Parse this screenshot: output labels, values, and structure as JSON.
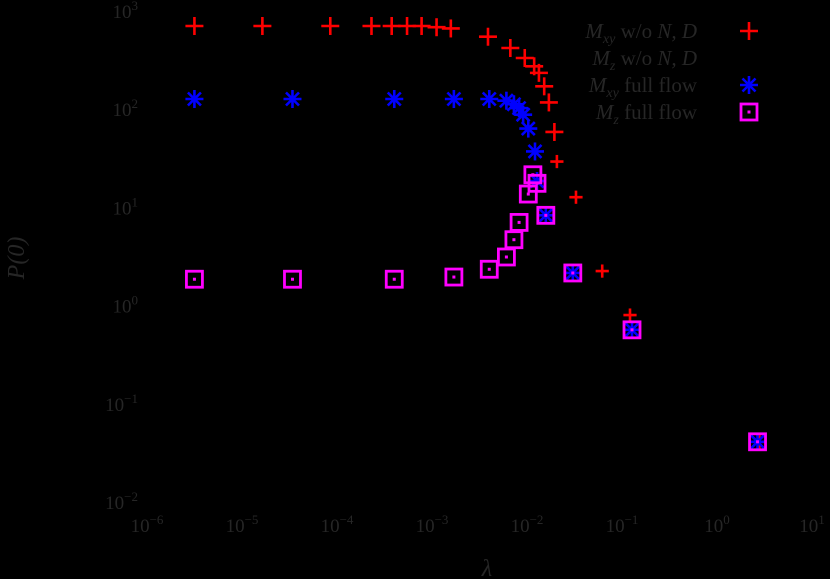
{
  "chart_data": {
    "type": "scatter",
    "title": "",
    "xlabel": "λ",
    "ylabel": "P(0)",
    "xscale": "log",
    "yscale": "log",
    "xlim": [
      1e-06,
      10
    ],
    "ylim": [
      0.01,
      1000
    ],
    "grid": false,
    "legend_position": "upper right",
    "x_ticks": [
      "10^-6",
      "10^-5",
      "10^-4",
      "10^-3",
      "10^-2",
      "10^-1",
      "10^0",
      "10^1"
    ],
    "y_ticks": [
      "10^-2",
      "10^-1",
      "10^0",
      "10^1",
      "10^2",
      "10^3"
    ],
    "series": [
      {
        "name": "M_xy w/o N, D",
        "marker": "plus",
        "color": "#FF0000",
        "x": [
          2.6e-06,
          1.35e-05,
          7e-05,
          0.00019,
          0.00031,
          0.00045,
          0.00064,
          0.00092,
          0.0013,
          0.0032,
          0.0055,
          0.0078,
          0.0098,
          0.011,
          0.0125,
          0.014,
          0.016,
          0.017,
          0.027,
          0.051,
          0.1,
          2.3
        ],
        "y": [
          720,
          720,
          720,
          720,
          720,
          720,
          720,
          700,
          680,
          560,
          430,
          340,
          280,
          240,
          175,
          120,
          60,
          30,
          13,
          2.3,
          0.82,
          0.042
        ]
      },
      {
        "name": "M_z w/o N, D",
        "marker": "square",
        "color": "#000000",
        "x": [
          0.017,
          0.027,
          0.051,
          0.1,
          2.3
        ],
        "y": [
          30,
          13,
          2.3,
          0.82,
          0.042
        ]
      },
      {
        "name": "M_xy full flow",
        "marker": "asterisk",
        "color": "#0000FF",
        "x": [
          2.6e-06,
          2.8e-05,
          0.00033,
          0.0014,
          0.0033,
          0.005,
          0.006,
          0.0068,
          0.0075,
          0.0085,
          0.01,
          0.0105,
          0.013,
          0.025,
          0.105,
          2.2
        ],
        "y": [
          130,
          130,
          130,
          130,
          130,
          125,
          115,
          105,
          90,
          65,
          38,
          19,
          8.5,
          2.2,
          0.58,
          0.042
        ]
      },
      {
        "name": "M_z full flow",
        "marker": "square-dot",
        "color": "#FF00FF",
        "x": [
          2.6e-06,
          2.8e-05,
          0.00033,
          0.0014,
          0.0033,
          0.005,
          0.006,
          0.0068,
          0.0085,
          0.0095,
          0.0105,
          0.013,
          0.025,
          0.105,
          2.2
        ],
        "y": [
          1.9,
          1.9,
          1.9,
          2.0,
          2.4,
          3.2,
          4.8,
          7.2,
          14,
          22,
          18,
          8.5,
          2.2,
          0.58,
          0.042
        ]
      }
    ]
  },
  "legend": {
    "entries": [
      {
        "main": "M",
        "sub": "xy",
        "rest_plain": " w/o ",
        "rest_italic": "N, D",
        "marker": "plus",
        "color": "#FF0000"
      },
      {
        "main": "M",
        "sub": "z",
        "rest_plain": " w/o ",
        "rest_italic": "N, D",
        "marker": "square",
        "color": "#000000"
      },
      {
        "main": "M",
        "sub": "xy",
        "rest_plain": " full flow",
        "rest_italic": "",
        "marker": "asterisk",
        "color": "#0000FF"
      },
      {
        "main": "M",
        "sub": "z",
        "rest_plain": " full flow",
        "rest_italic": "",
        "marker": "square-dot",
        "color": "#FF00FF"
      }
    ]
  },
  "axes": {
    "xlabel": "λ",
    "ylabel": "P(0)",
    "x_tick_exponents": [
      "-6",
      "-5",
      "-4",
      "-3",
      "-2",
      "-1",
      "0",
      "1"
    ],
    "y_tick_exponents": [
      "3",
      "2",
      "1",
      "0",
      "-1",
      "-2"
    ],
    "tick_base": "10"
  },
  "colors": {
    "background": "#000000",
    "text": "#262626"
  }
}
